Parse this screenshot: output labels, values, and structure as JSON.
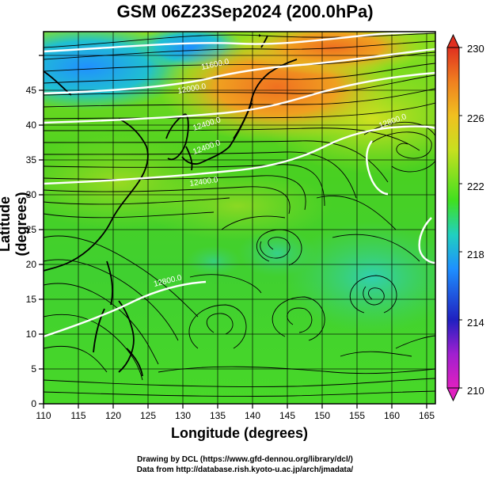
{
  "title": "GSM 06Z23Sep2024 (200.0hPa)",
  "axes": {
    "xlabel": "Longitude (degrees)",
    "ylabel": "Latitude  (degrees)",
    "xticks": [
      "110",
      "115",
      "120",
      "125",
      "130",
      "135",
      "140",
      "145",
      "150",
      "155",
      "160",
      "165"
    ],
    "yticks": [
      "0",
      "5",
      "10",
      "15",
      "20",
      "25",
      "30",
      "35",
      "40",
      "45"
    ]
  },
  "colorbar": {
    "ticks": [
      "210",
      "214",
      "218",
      "222",
      "226",
      "230"
    ],
    "colors": [
      "#e020c0",
      "#2020c0",
      "#1e90ff",
      "#20d0c0",
      "#40e020",
      "#c8e020",
      "#f0c020",
      "#f08020",
      "#e03020"
    ]
  },
  "contour_labels": [
    "11600.0",
    "12000.0",
    "12400.0",
    "12400.0",
    "12800.0",
    "12800.0",
    "12400.0"
  ],
  "credits": {
    "line1": "Drawing by DCL (https://www.gfd-dennou.org/library/dcl/)",
    "line2": "Data from http://database.rish.kyoto-u.ac.jp/arch/jmadata/"
  }
}
